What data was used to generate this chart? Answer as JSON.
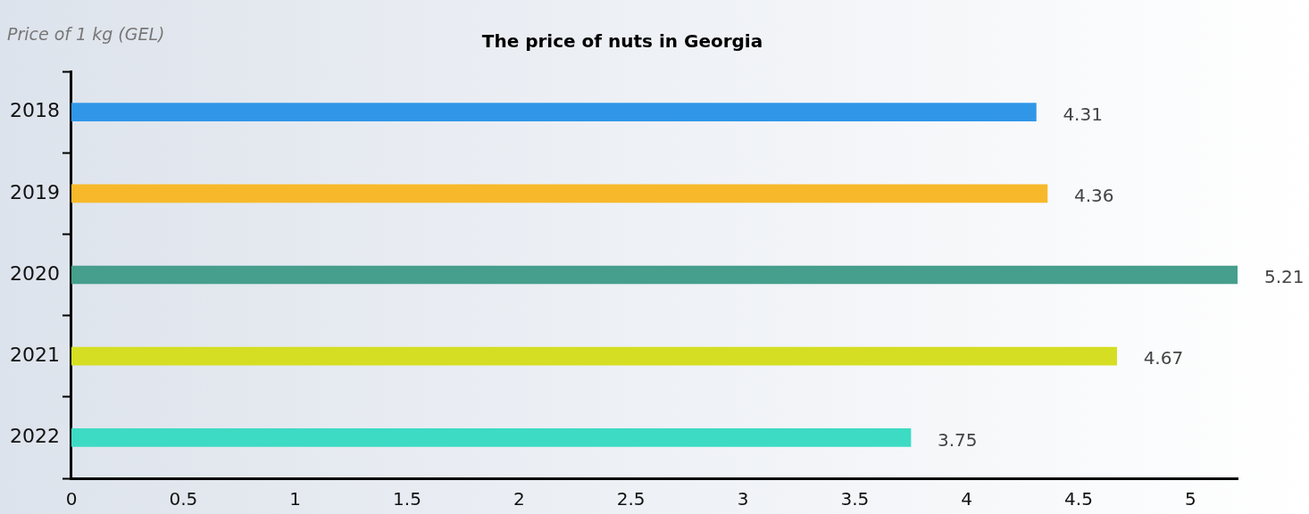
{
  "chart_data": {
    "type": "bar",
    "orientation": "horizontal",
    "title": "The price of nuts in Georgia",
    "annotations": [
      "Price of 1 kg (GEL)"
    ],
    "categories": [
      "2018",
      "2019",
      "2020",
      "2021",
      "2022"
    ],
    "values": [
      4.31,
      4.36,
      5.21,
      4.67,
      3.75
    ],
    "colors": [
      "#3097e8",
      "#f7b92b",
      "#469e8c",
      "#d5de22",
      "#3ddbc4"
    ],
    "xlim": [
      0,
      5.21
    ],
    "xticks": [
      0,
      0.5,
      1,
      1.5,
      2,
      2.5,
      3,
      3.5,
      4,
      4.5,
      5
    ],
    "data_labels": true,
    "grid": false,
    "legend": false
  }
}
